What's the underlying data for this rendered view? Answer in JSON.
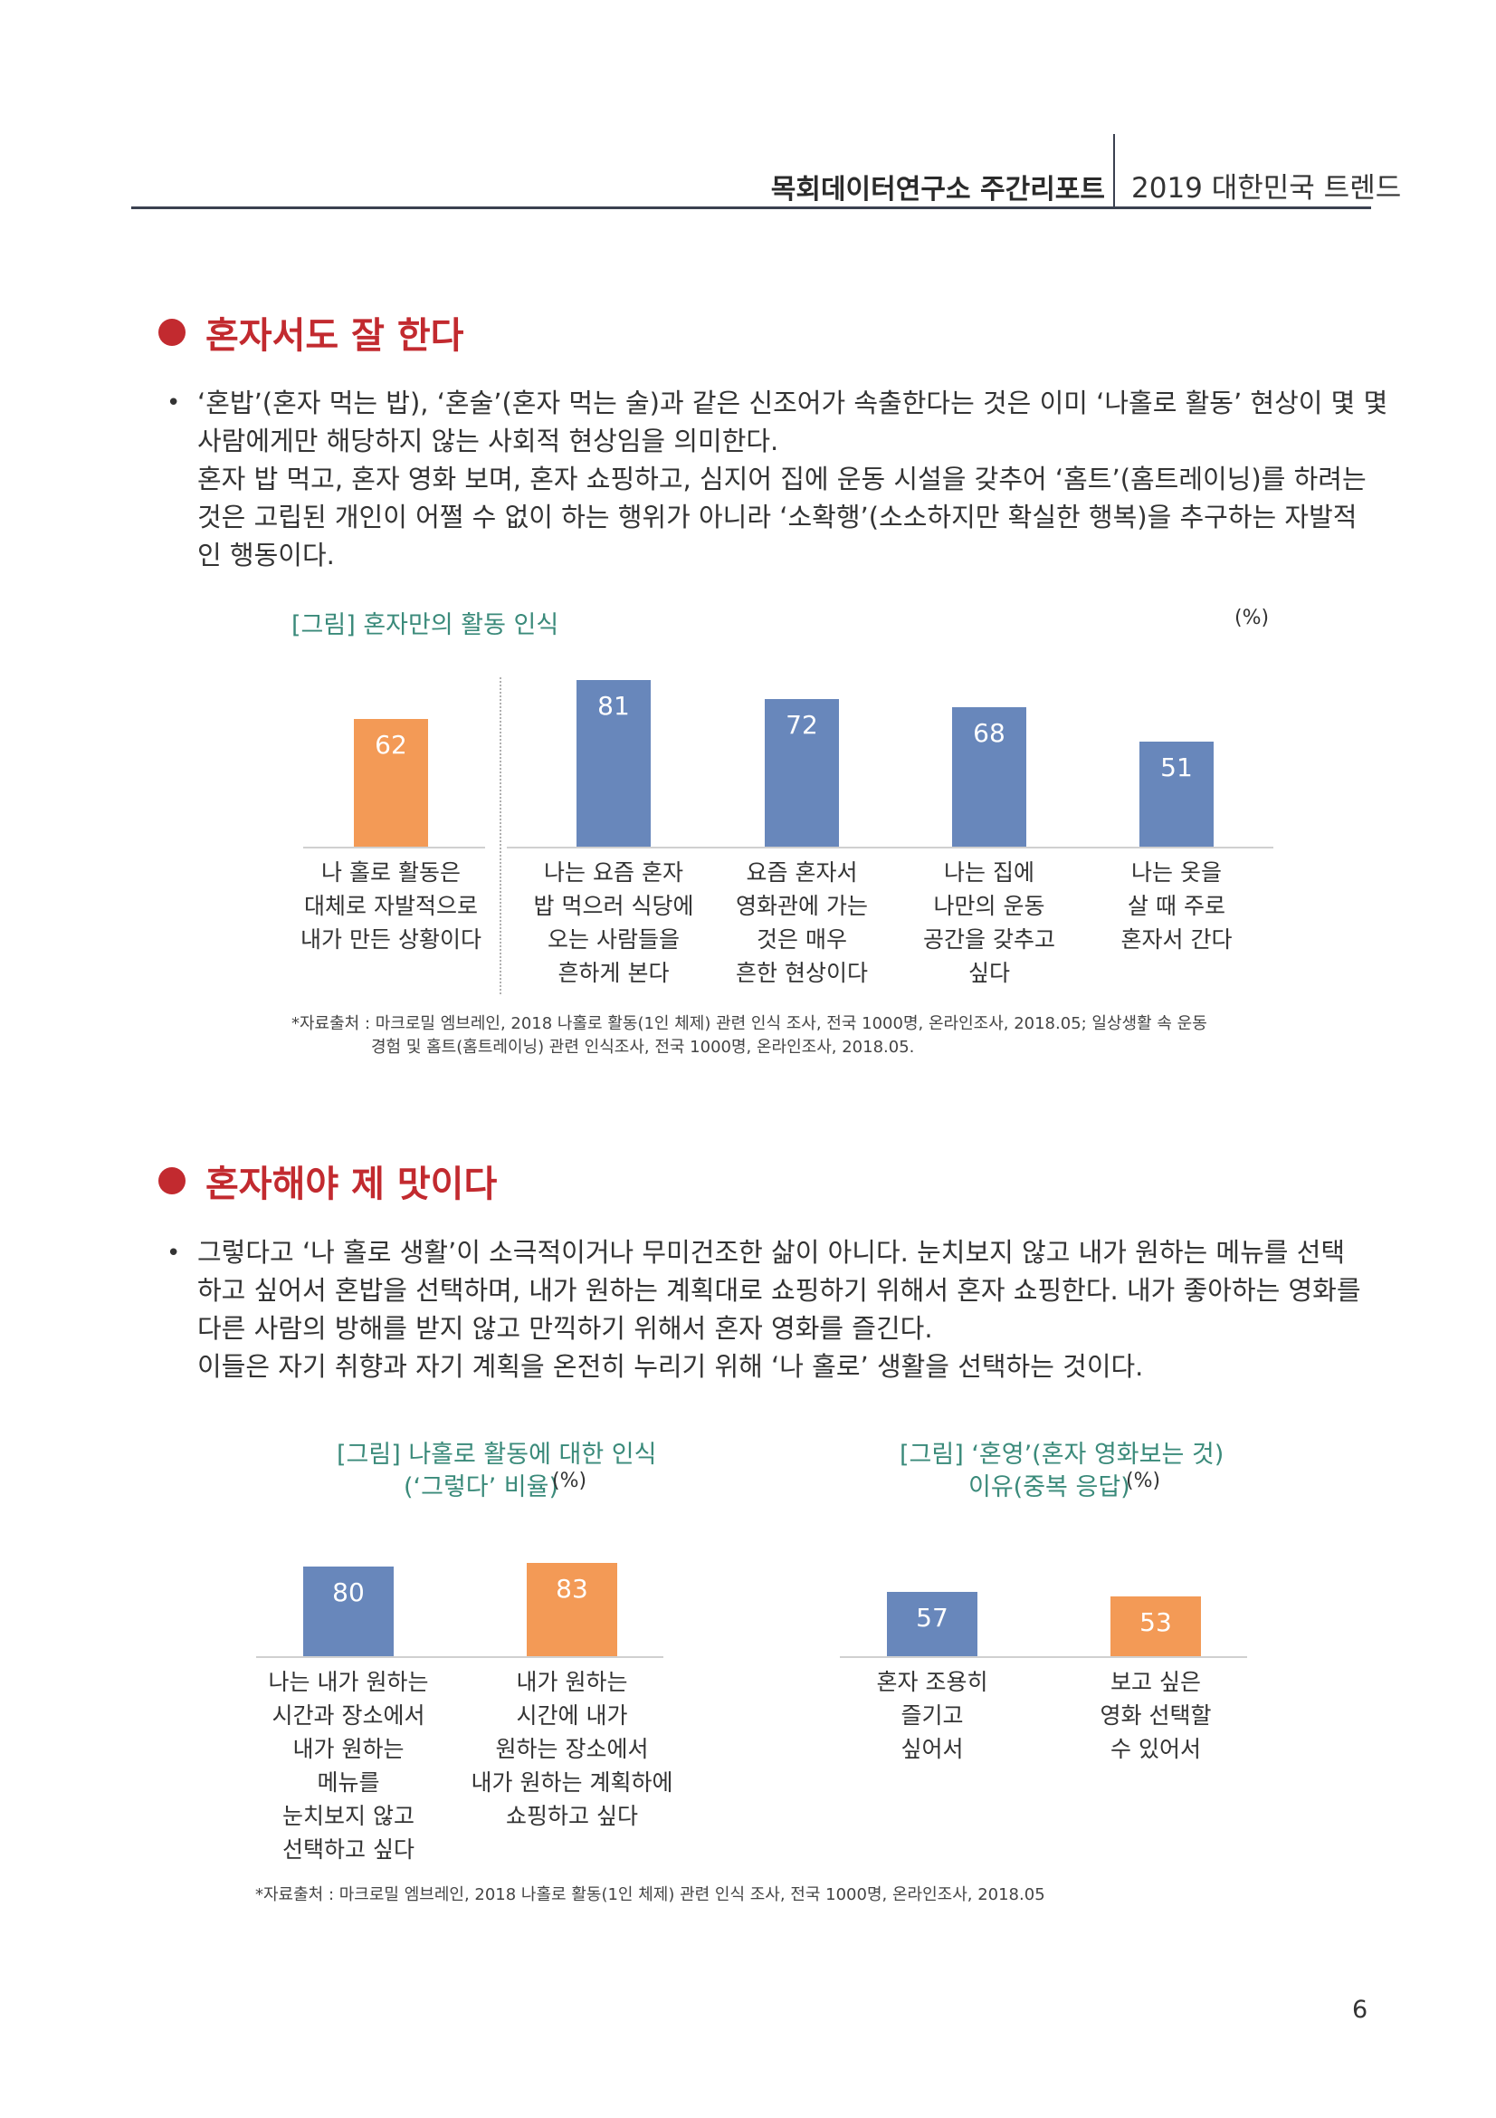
{
  "header": {
    "left": "목회데이터연구소 주간리포트",
    "right": "2019 대한민국 트렌드"
  },
  "section1": {
    "title": "혼자서도 잘 한다",
    "para1": [
      "‘혼밥’(혼자 먹는 밥), ‘혼술’(혼자 먹는 술)과 같은 신조어가 속출한다는 것은 이미 ‘나홀로 활동’ 현상이 몇 몇",
      "사람에게만 해당하지 않는 사회적 현상임을 의미한다."
    ],
    "para2": [
      "혼자 밥 먹고, 혼자 영화 보며, 혼자 쇼핑하고, 심지어 집에 운동 시설을 갖추어 ‘홈트’(홈트레이닝)를 하려는",
      "것은 고립된 개인이 어쩔 수 없이 하는 행위가 아니라 ‘소확행’(소소하지만 확실한 행복)을 추구하는 자발적",
      "인 행동이다."
    ],
    "figure": {
      "title": "[그림] 혼자만의 활동 인식",
      "unit": "(%)",
      "source_line1": "*자료출처 : 마크로밀 엠브레인, 2018 나홀로 활동(1인 체제) 관련 인식 조사, 전국 1000명, 온라인조사, 2018.05; 일상생활 속 운동",
      "source_line2": "경험 및 홈트(홈트레이닝) 관련 인식조사, 전국 1000명, 온라인조사, 2018.05."
    }
  },
  "section2": {
    "title": "혼자해야 제 맛이다",
    "para1": [
      "그렇다고 ‘나 홀로 생활’이 소극적이거나 무미건조한 삶이 아니다. 눈치보지 않고 내가 원하는 메뉴를 선택",
      "하고 싶어서 혼밥을 선택하며, 내가 원하는 계획대로 쇼핑하기 위해서 혼자 쇼핑한다. 내가 좋아하는 영화를",
      "다른 사람의 방해를 받지 않고 만끽하기 위해서 혼자 영화를 즐긴다."
    ],
    "para2": [
      "이들은 자기 취향과 자기 계획을 온전히 누리기 위해 ‘나 홀로’ 생활을 선택하는 것이다."
    ],
    "figure_left": {
      "title_line1": "[그림] 나홀로 활동에 대한 인식",
      "title_line2": "(‘그렇다’ 비율)",
      "unit": "(%)"
    },
    "figure_right": {
      "title_line1": "[그림] ‘혼영’(혼자 영화보는 것)",
      "title_line2": "이유(중복 응답)",
      "unit": "(%)"
    },
    "source": "*자료출처 : 마크로밀 엠브레인, 2018 나홀로 활동(1인 체제) 관련 인식 조사, 전국 1000명, 온라인조사, 2018.05"
  },
  "chart_data": [
    {
      "type": "bar",
      "title": "[그림] 혼자만의 활동 인식",
      "unit": "(%)",
      "categories": [
        "나 홀로 활동은\n대체로 자발적으로\n내가 만든 상황이다",
        "나는 요즘 혼자\n밥 먹으러 식당에\n오는 사람들을\n흔하게 본다",
        "요즘 혼자서\n영화관에 가는\n것은 매우\n흔한 현상이다",
        "나는 집에\n나만의 운동\n공간을 갖추고\n싶다",
        "나는 옷을\n살 때 주로\n혼자서 간다"
      ],
      "values": [
        62,
        81,
        72,
        68,
        51
      ],
      "colors": [
        "#f39a56",
        "#6887bb",
        "#6887bb",
        "#6887bb",
        "#6887bb"
      ],
      "ylim": [
        0,
        100
      ]
    },
    {
      "type": "bar",
      "title": "[그림] 나홀로 활동에 대한 인식 (‘그렇다’ 비율)",
      "unit": "(%)",
      "categories": [
        "나는 내가 원하는\n시간과 장소에서\n내가 원하는\n메뉴를\n눈치보지 않고\n선택하고 싶다",
        "내가 원하는\n시간에 내가\n원하는 장소에서\n내가 원하는 계획하에\n쇼핑하고 싶다"
      ],
      "values": [
        80,
        83
      ],
      "colors": [
        "#6887bb",
        "#f39a56"
      ],
      "ylim": [
        0,
        100
      ]
    },
    {
      "type": "bar",
      "title": "[그림] ‘혼영’(혼자 영화보는 것) 이유(중복 응답)",
      "unit": "(%)",
      "categories": [
        "혼자 조용히\n즐기고\n싶어서",
        "보고 싶은\n영화 선택할\n수 있어서"
      ],
      "values": [
        57,
        53
      ],
      "colors": [
        "#6887bb",
        "#f39a56"
      ],
      "ylim": [
        0,
        100
      ]
    }
  ],
  "page_number": "6"
}
